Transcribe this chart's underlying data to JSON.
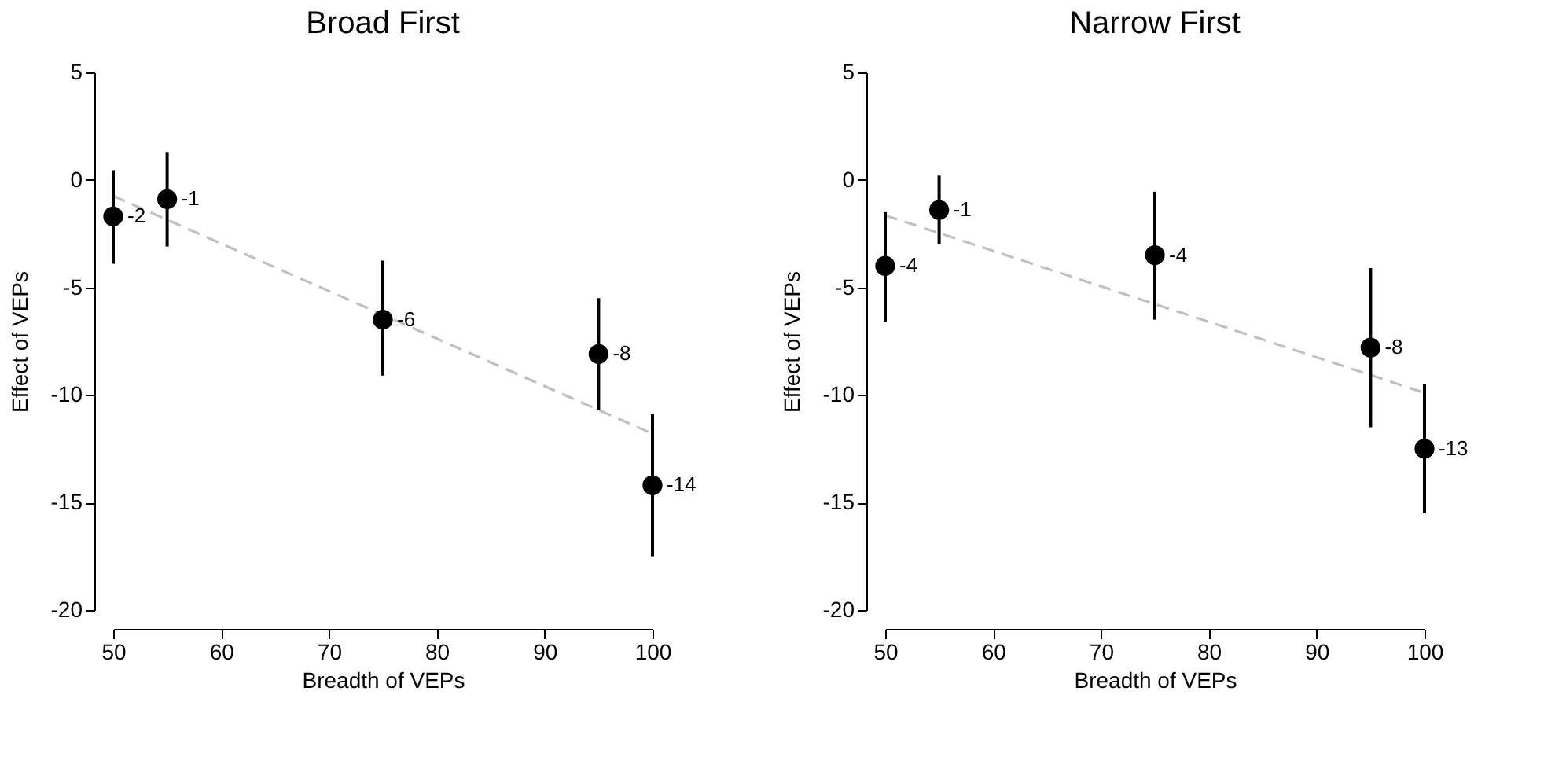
{
  "chart_data": [
    {
      "type": "scatter",
      "title": "Broad First",
      "xlabel": "Breadth of VEPs",
      "ylabel": "Effect of VEPs",
      "xlim": [
        50,
        100
      ],
      "xticks": [
        50,
        60,
        70,
        80,
        90,
        100
      ],
      "ylim": [
        -20,
        5
      ],
      "yticks": [
        -20,
        -15,
        -10,
        -5,
        0,
        5
      ],
      "series": [
        {
          "marker": "circle",
          "color": "#000000",
          "x": [
            50,
            55,
            75,
            95,
            100
          ],
          "values": [
            -1.7,
            -0.9,
            -6.5,
            -8.1,
            -14.2
          ],
          "errors": [
            [
              -3.9,
              0.45
            ],
            [
              -3.1,
              1.3
            ],
            [
              -9.1,
              -3.75
            ],
            [
              -10.7,
              -5.5
            ],
            [
              -17.5,
              -10.9
            ]
          ],
          "value_labels": [
            "-2",
            "-1",
            "-6",
            "-8",
            "-14"
          ]
        },
        {
          "type": "line",
          "color": "#c0c0c0",
          "line_style": "dashed",
          "x": [
            50,
            100
          ],
          "values": [
            -0.75,
            -11.8
          ]
        }
      ]
    },
    {
      "type": "scatter",
      "title": "Narrow First",
      "xlabel": "Breadth of VEPs",
      "ylabel": "Effect of VEPs",
      "xlim": [
        50,
        100
      ],
      "xticks": [
        50,
        60,
        70,
        80,
        90,
        100
      ],
      "ylim": [
        -20,
        5
      ],
      "yticks": [
        -20,
        -15,
        -10,
        -5,
        0,
        5
      ],
      "series": [
        {
          "marker": "circle",
          "color": "#000000",
          "x": [
            50,
            55,
            75,
            95,
            100
          ],
          "values": [
            -4.0,
            -1.4,
            -3.5,
            -7.8,
            -12.5
          ],
          "errors": [
            [
              -6.6,
              -1.5
            ],
            [
              -3.0,
              0.2
            ],
            [
              -6.5,
              -0.55
            ],
            [
              -11.5,
              -4.1
            ],
            [
              -15.5,
              -9.5
            ]
          ],
          "value_labels": [
            "-4",
            "-1",
            "-4",
            "-8",
            "-13"
          ]
        },
        {
          "type": "line",
          "color": "#c0c0c0",
          "line_style": "dashed",
          "x": [
            50,
            100
          ],
          "values": [
            -1.65,
            -9.9
          ]
        }
      ]
    }
  ]
}
